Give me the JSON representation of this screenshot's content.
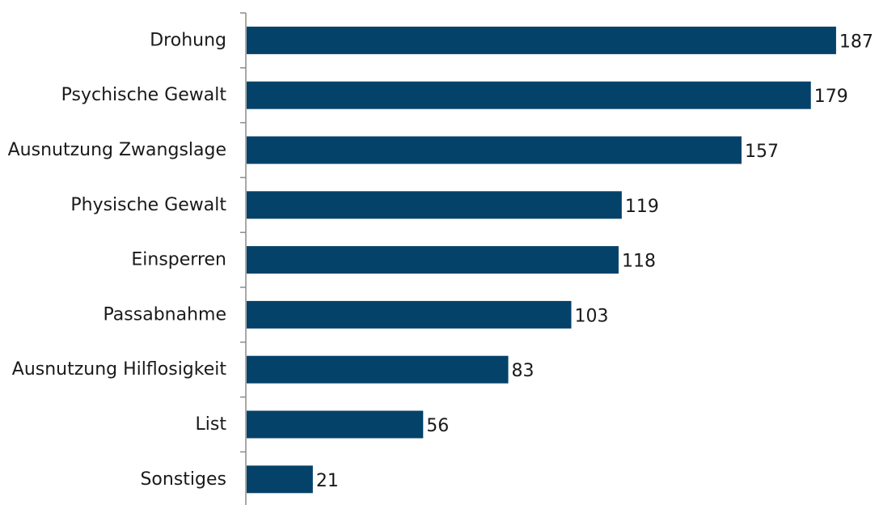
{
  "chart_data": {
    "type": "bar",
    "orientation": "horizontal",
    "categories": [
      "Drohung",
      "Psychische Gewalt",
      "Ausnutzung Zwangslage",
      "Physische Gewalt",
      "Einsperren",
      "Passabnahme",
      "Ausnutzung Hilflosigkeit",
      "List",
      "Sonstiges"
    ],
    "values": [
      187,
      179,
      157,
      119,
      118,
      103,
      83,
      56,
      21
    ],
    "value_labels": [
      "187",
      "179",
      "157",
      "119",
      "118",
      "103",
      "83",
      "56",
      "21"
    ],
    "title": "",
    "xlabel": "",
    "ylabel": "",
    "xlim": [
      0,
      196
    ],
    "grid": false,
    "legend": "none",
    "bar_color": "#05426a"
  }
}
